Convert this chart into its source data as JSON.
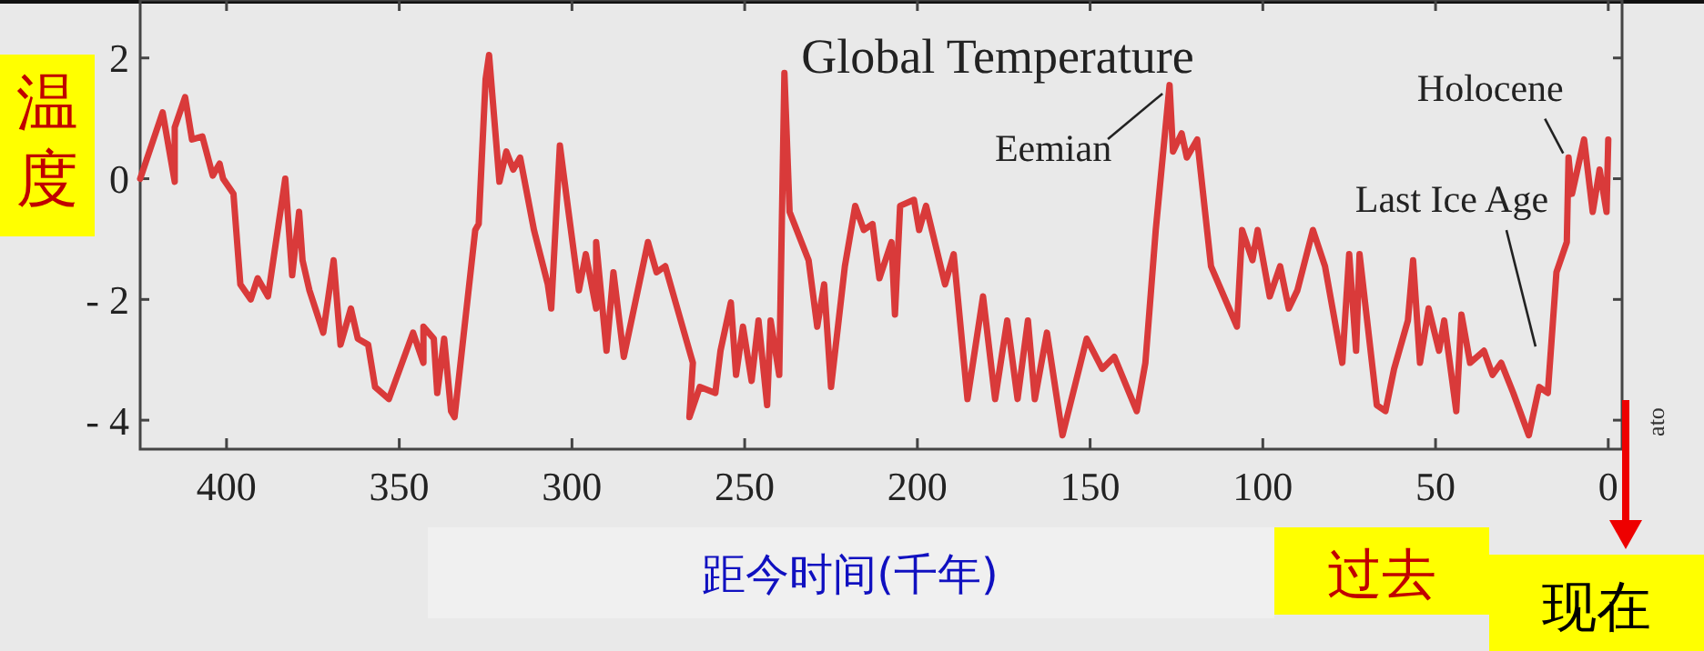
{
  "chart_data": {
    "type": "line",
    "title": "Global Temperature",
    "ylabel": "温度",
    "xlabel": "距今时间(千年)",
    "x": [
      425,
      418.5,
      415,
      415,
      412,
      410,
      407,
      404,
      402,
      401,
      398,
      396,
      393,
      391,
      388,
      383,
      381,
      379,
      378,
      376,
      372,
      369,
      367,
      364,
      362,
      359,
      357,
      353,
      346,
      343,
      343,
      340,
      339,
      337,
      335,
      334,
      328,
      327,
      325,
      324,
      321,
      319,
      317,
      315,
      311,
      307,
      306,
      303.5,
      301,
      298,
      296,
      293,
      293,
      290,
      288,
      285,
      278,
      275.5,
      273,
      270,
      267.5,
      265,
      266,
      263,
      258.5,
      257,
      254,
      252.5,
      250.5,
      248,
      246,
      243.5,
      242.5,
      240,
      238.5,
      237,
      231.5,
      229,
      227,
      225,
      221,
      218,
      215.5,
      213,
      211,
      207.5,
      206.5,
      205,
      201,
      199.5,
      197.5,
      192,
      189.5,
      185.5,
      181,
      177.5,
      174,
      171,
      168,
      166,
      162.5,
      158,
      151,
      146.5,
      143,
      136.5,
      134,
      131,
      128,
      127,
      126,
      123.5,
      122,
      119,
      115,
      107.5,
      106,
      103,
      101.5,
      98,
      95,
      92.5,
      90,
      85.5,
      82,
      77,
      75,
      73,
      72,
      67,
      64.5,
      62,
      58,
      56.5,
      54.5,
      52,
      49,
      47.5,
      44,
      42.5,
      40,
      36,
      33.5,
      31,
      27.5,
      23,
      20,
      17.5,
      15,
      12,
      11.5,
      10.5,
      7,
      4.5,
      2.5,
      0.5,
      0
    ],
    "series": [
      {
        "color": "#d93a3a",
        "values": [
          0,
          1.1,
          -0.05,
          0.85,
          1.35,
          0.65,
          0.7,
          0.05,
          0.25,
          0,
          -0.25,
          -1.75,
          -2,
          -1.65,
          -1.95,
          0,
          -1.6,
          -0.55,
          -1.35,
          -1.85,
          -2.55,
          -1.35,
          -2.75,
          -2.15,
          -2.65,
          -2.75,
          -3.45,
          -3.65,
          -2.55,
          -3.05,
          -2.45,
          -2.65,
          -3.55,
          -2.65,
          -3.85,
          -3.95,
          -0.85,
          -0.75,
          1.65,
          2.05,
          -0.05,
          0.45,
          0.15,
          0.35,
          -0.85,
          -1.75,
          -2.15,
          0.55,
          -0.55,
          -1.85,
          -1.25,
          -2.15,
          -1.05,
          -2.85,
          -1.55,
          -2.95,
          -1.05,
          -1.55,
          -1.45,
          -2.05,
          -2.55,
          -3.05,
          -3.95,
          -3.45,
          -3.55,
          -2.85,
          -2.05,
          -3.25,
          -2.45,
          -3.35,
          -2.35,
          -3.75,
          -2.35,
          -3.25,
          1.75,
          -0.55,
          -1.35,
          -2.45,
          -1.75,
          -3.45,
          -1.45,
          -0.45,
          -0.85,
          -0.75,
          -1.65,
          -1.05,
          -2.25,
          -0.45,
          -0.35,
          -0.85,
          -0.45,
          -1.75,
          -1.25,
          -3.65,
          -1.95,
          -3.65,
          -2.35,
          -3.65,
          -2.35,
          -3.65,
          -2.55,
          -4.25,
          -2.65,
          -3.15,
          -2.95,
          -3.85,
          -3.05,
          -0.85,
          0.95,
          1.55,
          0.45,
          0.75,
          0.35,
          0.65,
          -1.45,
          -2.45,
          -0.85,
          -1.35,
          -0.85,
          -1.95,
          -1.45,
          -2.15,
          -1.85,
          -0.85,
          -1.45,
          -3.05,
          -1.25,
          -2.85,
          -1.25,
          -3.75,
          -3.85,
          -3.15,
          -2.35,
          -1.35,
          -3.05,
          -2.15,
          -2.85,
          -2.35,
          -3.85,
          -2.25,
          -3.05,
          -2.85,
          -3.25,
          -3.05,
          -3.55,
          -4.25,
          -3.45,
          -3.55,
          -1.55,
          -1.05,
          0.35,
          -0.25,
          0.65,
          -0.55,
          0.15,
          -0.55,
          0.65
        ]
      }
    ],
    "xlim": [
      425,
      -4
    ],
    "ylim": [
      -4.48,
      2.96
    ],
    "xticks": [
      400,
      350,
      300,
      250,
      200,
      150,
      100,
      50,
      0
    ],
    "yticks": [
      2,
      0,
      {
        "value": -2,
        "label": "- 2"
      },
      {
        "value": -4,
        "label": "- 4"
      }
    ],
    "grid": false,
    "marker": "none",
    "line_style": "solid",
    "annotations": [
      {
        "text": "Eemian",
        "x": 128,
        "y": 1.5
      },
      {
        "text": "Holocene",
        "x": 12,
        "y": 0.3
      },
      {
        "text": "Last Ice Age",
        "x": 20,
        "y": -2.9
      },
      "过去",
      "现在",
      "ato"
    ]
  }
}
